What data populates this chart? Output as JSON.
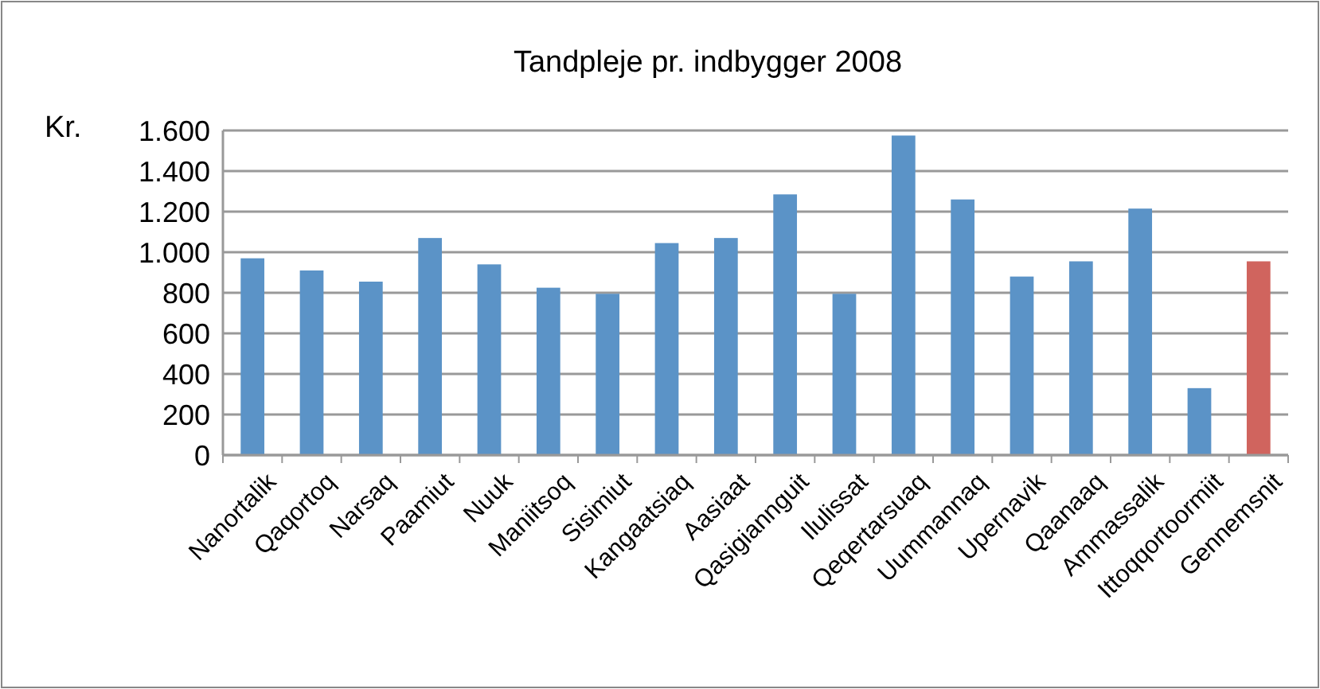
{
  "chart_data": {
    "type": "bar",
    "title": "Tandpleje pr. indbygger 2008",
    "ylabel": "Kr.",
    "categories": [
      "Nanortalik",
      "Qaqortoq",
      "Narsaq",
      "Paamiut",
      "Nuuk",
      "Maniitsoq",
      "Sisimiut",
      "Kangaatsiaq",
      "Aasiaat",
      "Qasigiannguit",
      "Ilulissat",
      "Qeqertarsuaq",
      "Uummannaq",
      "Upernavik",
      "Qaanaaq",
      "Ammassalik",
      "Ittoqqortoormiit",
      "Gennemsnit"
    ],
    "values": [
      970,
      910,
      855,
      1070,
      940,
      825,
      795,
      1045,
      1070,
      1285,
      795,
      1575,
      1260,
      880,
      955,
      1215,
      330,
      955
    ],
    "colors": [
      "#5b93c7",
      "#5b93c7",
      "#5b93c7",
      "#5b93c7",
      "#5b93c7",
      "#5b93c7",
      "#5b93c7",
      "#5b93c7",
      "#5b93c7",
      "#5b93c7",
      "#5b93c7",
      "#5b93c7",
      "#5b93c7",
      "#5b93c7",
      "#5b93c7",
      "#5b93c7",
      "#5b93c7",
      "#d0645e"
    ],
    "ylim": [
      0,
      1600
    ],
    "yticks": [
      {
        "value": 0,
        "label": "0"
      },
      {
        "value": 200,
        "label": "200"
      },
      {
        "value": 400,
        "label": "400"
      },
      {
        "value": 600,
        "label": "600"
      },
      {
        "value": 800,
        "label": "800"
      },
      {
        "value": 1000,
        "label": "1.000"
      },
      {
        "value": 1200,
        "label": "1.200"
      },
      {
        "value": 1400,
        "label": "1.400"
      },
      {
        "value": 1600,
        "label": "1.600"
      }
    ],
    "grid": "y"
  }
}
